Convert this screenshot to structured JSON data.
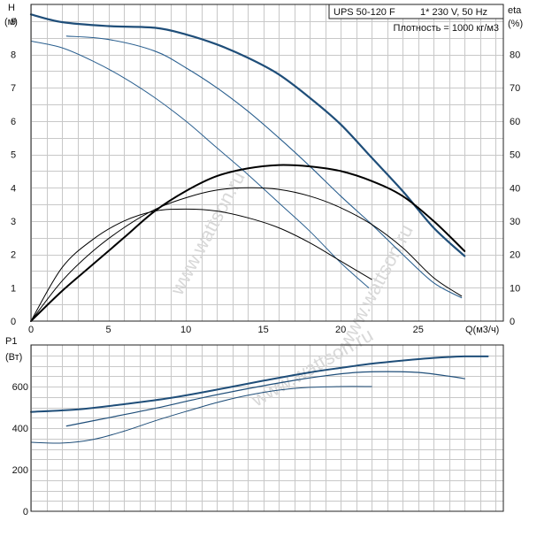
{
  "chart_data": [
    {
      "type": "line",
      "title": "UPS 50-120 F",
      "supply": "1* 230 V, 50 Hz",
      "density": "Плотность = 1000 кг/м3",
      "ylabel_left": "H",
      "ylabel_left_unit": "(м)",
      "ylabel_right": "eta",
      "ylabel_right_unit": "(%)",
      "xlabel": "Q(м3/ч)",
      "xlim": [
        0,
        30.5
      ],
      "ylim_left": [
        0,
        9.5
      ],
      "ylim_right": [
        0,
        95
      ],
      "x_ticks": [
        "0",
        "5",
        "10",
        "15",
        "20",
        "25"
      ],
      "y_ticks_left": [
        "0",
        "1",
        "2",
        "3",
        "4",
        "5",
        "6",
        "7",
        "8",
        "9"
      ],
      "y_ticks_right": [
        "0",
        "10",
        "20",
        "30",
        "40",
        "50",
        "60",
        "70",
        "80"
      ],
      "grid": true,
      "series": [
        {
          "role": "head-speed-3",
          "color": "#1f4e79",
          "width": 2.2,
          "points": [
            [
              0,
              9.2
            ],
            [
              2,
              8.97
            ],
            [
              5,
              8.85
            ],
            [
              8,
              8.8
            ],
            [
              10,
              8.6
            ],
            [
              12,
              8.3
            ],
            [
              14,
              7.9
            ],
            [
              16,
              7.4
            ],
            [
              18,
              6.7
            ],
            [
              20,
              5.9
            ],
            [
              22,
              4.9
            ],
            [
              24,
              3.9
            ],
            [
              26,
              2.8
            ],
            [
              28,
              1.95
            ]
          ]
        },
        {
          "role": "head-speed-2",
          "color": "#2a5f8f",
          "width": 1.1,
          "points": [
            [
              2.3,
              8.55
            ],
            [
              5,
              8.45
            ],
            [
              8,
              8.1
            ],
            [
              10,
              7.6
            ],
            [
              12,
              7.0
            ],
            [
              14,
              6.3
            ],
            [
              16,
              5.5
            ],
            [
              18,
              4.65
            ],
            [
              20,
              3.75
            ],
            [
              22,
              2.9
            ],
            [
              24,
              2.0
            ],
            [
              26,
              1.15
            ],
            [
              27.8,
              0.7
            ]
          ]
        },
        {
          "role": "head-speed-1",
          "color": "#2a5f8f",
          "width": 1.0,
          "points": [
            [
              0,
              8.4
            ],
            [
              2,
              8.2
            ],
            [
              4,
              7.8
            ],
            [
              6,
              7.3
            ],
            [
              8,
              6.7
            ],
            [
              10,
              6.0
            ],
            [
              12,
              5.2
            ],
            [
              14,
              4.4
            ],
            [
              16,
              3.55
            ],
            [
              18,
              2.7
            ],
            [
              20,
              1.75
            ],
            [
              21.8,
              1.0
            ]
          ]
        },
        {
          "role": "eta-speed-3",
          "color": "#000000",
          "width": 2.0,
          "points": [
            [
              0,
              0
            ],
            [
              2,
              9
            ],
            [
              4,
              17
            ],
            [
              6,
              25
            ],
            [
              8,
              33
            ],
            [
              10,
              39
            ],
            [
              12,
              43.5
            ],
            [
              14,
              45.8
            ],
            [
              16,
              46.8
            ],
            [
              18,
              46.4
            ],
            [
              20,
              45
            ],
            [
              22,
              42
            ],
            [
              24,
              37.5
            ],
            [
              26,
              30
            ],
            [
              28,
              21
            ]
          ]
        },
        {
          "role": "eta-speed-2",
          "color": "#000000",
          "width": 1.0,
          "points": [
            [
              0,
              0
            ],
            [
              2,
              12
            ],
            [
              4,
              21
            ],
            [
              6,
              28
            ],
            [
              8,
              33.5
            ],
            [
              10,
              37
            ],
            [
              12,
              39.3
            ],
            [
              14,
              40
            ],
            [
              16,
              39.5
            ],
            [
              18,
              37.5
            ],
            [
              20,
              34
            ],
            [
              22,
              29
            ],
            [
              24,
              22
            ],
            [
              26,
              13
            ],
            [
              27.8,
              7.5
            ]
          ]
        },
        {
          "role": "eta-speed-1",
          "color": "#000000",
          "width": 1.0,
          "points": [
            [
              0,
              0
            ],
            [
              2,
              16
            ],
            [
              4,
              24.5
            ],
            [
              6,
              30
            ],
            [
              8,
              33
            ],
            [
              10,
              33.6
            ],
            [
              12,
              33
            ],
            [
              14,
              31
            ],
            [
              16,
              28
            ],
            [
              18,
              23.5
            ],
            [
              20,
              18
            ],
            [
              22,
              12.5
            ]
          ]
        }
      ]
    },
    {
      "type": "line",
      "ylabel": "P1",
      "ylabel_unit": "(Вт)",
      "xlim": [
        0,
        30.5
      ],
      "ylim": [
        0,
        800
      ],
      "y_ticks": [
        "0",
        "200",
        "400",
        "600"
      ],
      "grid": true,
      "series": [
        {
          "role": "p1-speed-3",
          "color": "#1f4e79",
          "width": 2.0,
          "points": [
            [
              0,
              478
            ],
            [
              3,
              490
            ],
            [
              6,
              515
            ],
            [
              9,
              545
            ],
            [
              12,
              585
            ],
            [
              15,
              628
            ],
            [
              18,
              668
            ],
            [
              20,
              690
            ],
            [
              22,
              710
            ],
            [
              24,
              725
            ],
            [
              26,
              738
            ],
            [
              28,
              745
            ],
            [
              29.5,
              745
            ]
          ]
        },
        {
          "role": "p1-speed-2",
          "color": "#1f4e79",
          "width": 1.2,
          "points": [
            [
              2.3,
              410
            ],
            [
              5,
              450
            ],
            [
              8,
              495
            ],
            [
              11,
              545
            ],
            [
              14,
              590
            ],
            [
              17,
              630
            ],
            [
              19,
              652
            ],
            [
              21,
              668
            ],
            [
              23,
              672
            ],
            [
              25,
              668
            ],
            [
              27,
              650
            ],
            [
              28,
              638
            ]
          ]
        },
        {
          "role": "p1-speed-1",
          "color": "#1f4e79",
          "width": 1.0,
          "points": [
            [
              0,
              332
            ],
            [
              2,
              328
            ],
            [
              4,
              345
            ],
            [
              6,
              385
            ],
            [
              8,
              435
            ],
            [
              10,
              480
            ],
            [
              12,
              523
            ],
            [
              14,
              558
            ],
            [
              16,
              583
            ],
            [
              18,
              596
            ],
            [
              20,
              600
            ],
            [
              22,
              600
            ]
          ]
        }
      ]
    }
  ],
  "watermark": "www.wattson.ru"
}
